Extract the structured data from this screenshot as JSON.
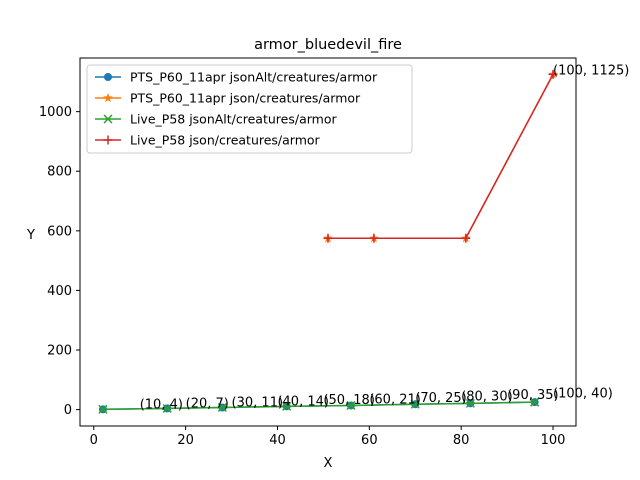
{
  "chart_data": {
    "type": "line",
    "title": "armor_bluedevil_fire",
    "xlabel": "X",
    "ylabel": "Y",
    "xlim": [
      -3,
      105
    ],
    "ylim": [
      -55,
      1180
    ],
    "xticks": [
      0,
      20,
      40,
      60,
      80,
      100
    ],
    "yticks": [
      0,
      200,
      400,
      600,
      800,
      1000
    ],
    "grid": false,
    "legend_position": "top-left",
    "series": [
      {
        "name": "PTS_P60_11apr jsonAlt/creatures/armor",
        "color": "#1f77b4",
        "marker": "circle",
        "x": [
          2,
          16,
          28,
          42,
          56,
          70,
          82,
          96
        ],
        "y": [
          1,
          4,
          7,
          11,
          14,
          18,
          21,
          25
        ]
      },
      {
        "name": "PTS_P60_11apr json/creatures/armor",
        "color": "#ff7f0e",
        "marker": "star",
        "x": [
          51,
          61,
          81,
          100
        ],
        "y": [
          575,
          575,
          575,
          1125
        ]
      },
      {
        "name": "Live_P58 jsonAlt/creatures/armor",
        "color": "#2ca02c",
        "marker": "x",
        "x": [
          2,
          16,
          28,
          42,
          56,
          70,
          82,
          96
        ],
        "y": [
          1,
          4,
          7,
          11,
          14,
          18,
          21,
          25
        ]
      },
      {
        "name": "Live_P58 json/creatures/armor",
        "color": "#d62728",
        "marker": "plus",
        "x": [
          51,
          61,
          81,
          100
        ],
        "y": [
          575,
          575,
          575,
          1125
        ]
      }
    ],
    "annotations": [
      {
        "text": "(10, 4)",
        "x": 10,
        "y": 4
      },
      {
        "text": "(20, 7)",
        "x": 20,
        "y": 7
      },
      {
        "text": "(30, 11)",
        "x": 30,
        "y": 11
      },
      {
        "text": "(40, 14)",
        "x": 40,
        "y": 14
      },
      {
        "text": "(50, 18)",
        "x": 50,
        "y": 18
      },
      {
        "text": "(60, 21)",
        "x": 60,
        "y": 21
      },
      {
        "text": "(70, 25)",
        "x": 70,
        "y": 25
      },
      {
        "text": "(80, 30)",
        "x": 80,
        "y": 30
      },
      {
        "text": "(90, 35)",
        "x": 90,
        "y": 35
      },
      {
        "text": "(100, 40)",
        "x": 100,
        "y": 40
      },
      {
        "text": "(100, 1125)",
        "x": 100,
        "y": 1125
      }
    ]
  }
}
